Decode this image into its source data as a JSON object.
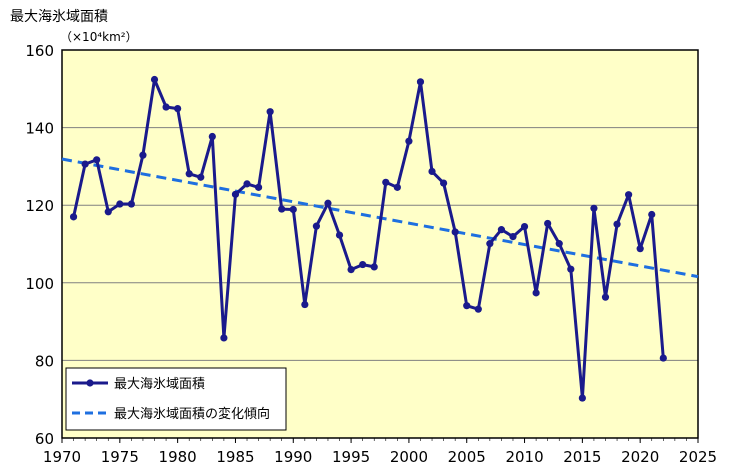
{
  "chart_data": {
    "type": "line",
    "ylabel": "最大海氷域面積",
    "yunit": "（×10⁴km²）",
    "xlim": [
      1970,
      2025
    ],
    "ylim": [
      60,
      160
    ],
    "xticks": [
      1970,
      1975,
      1980,
      1985,
      1990,
      1995,
      2000,
      2005,
      2010,
      2015,
      2020,
      2025
    ],
    "yticks": [
      60,
      80,
      100,
      120,
      140,
      160
    ],
    "grid": true,
    "legend_position": "bottom-left",
    "colors": {
      "series": "#1a1a8c",
      "trend": "#1e6fe0",
      "plot_bg": "#ffffc8",
      "axis": "#000000"
    },
    "series": [
      {
        "name": "最大海氷域面積",
        "x": [
          1971,
          1972,
          1973,
          1974,
          1975,
          1976,
          1977,
          1978,
          1979,
          1980,
          1981,
          1982,
          1983,
          1984,
          1985,
          1986,
          1987,
          1988,
          1989,
          1990,
          1991,
          1992,
          1993,
          1994,
          1995,
          1996,
          1997,
          1998,
          1999,
          2000,
          2001,
          2002,
          2003,
          2004,
          2005,
          2006,
          2007,
          2008,
          2009,
          2010,
          2011,
          2012,
          2013,
          2014,
          2015,
          2016,
          2017,
          2018,
          2019,
          2020,
          2021,
          2022
        ],
        "values": [
          117.0,
          130.6,
          131.7,
          118.3,
          120.3,
          120.3,
          132.9,
          152.4,
          145.3,
          144.9,
          128.1,
          127.2,
          137.7,
          85.8,
          122.8,
          125.5,
          124.6,
          144.1,
          119.0,
          118.9,
          94.4,
          114.6,
          120.5,
          112.3,
          103.4,
          104.7,
          104.1,
          125.9,
          124.6,
          136.5,
          151.8,
          128.7,
          125.7,
          113.1,
          94.1,
          93.2,
          110.1,
          113.7,
          111.9,
          114.5,
          97.4,
          115.3,
          110.1,
          103.5,
          70.3,
          119.2,
          96.3,
          115.1,
          122.7,
          108.8,
          117.6,
          80.6
        ]
      },
      {
        "name": "最大海氷域面積の変化傾向",
        "x": [
          1970,
          2025
        ],
        "values": [
          131.9,
          101.6
        ]
      }
    ]
  }
}
